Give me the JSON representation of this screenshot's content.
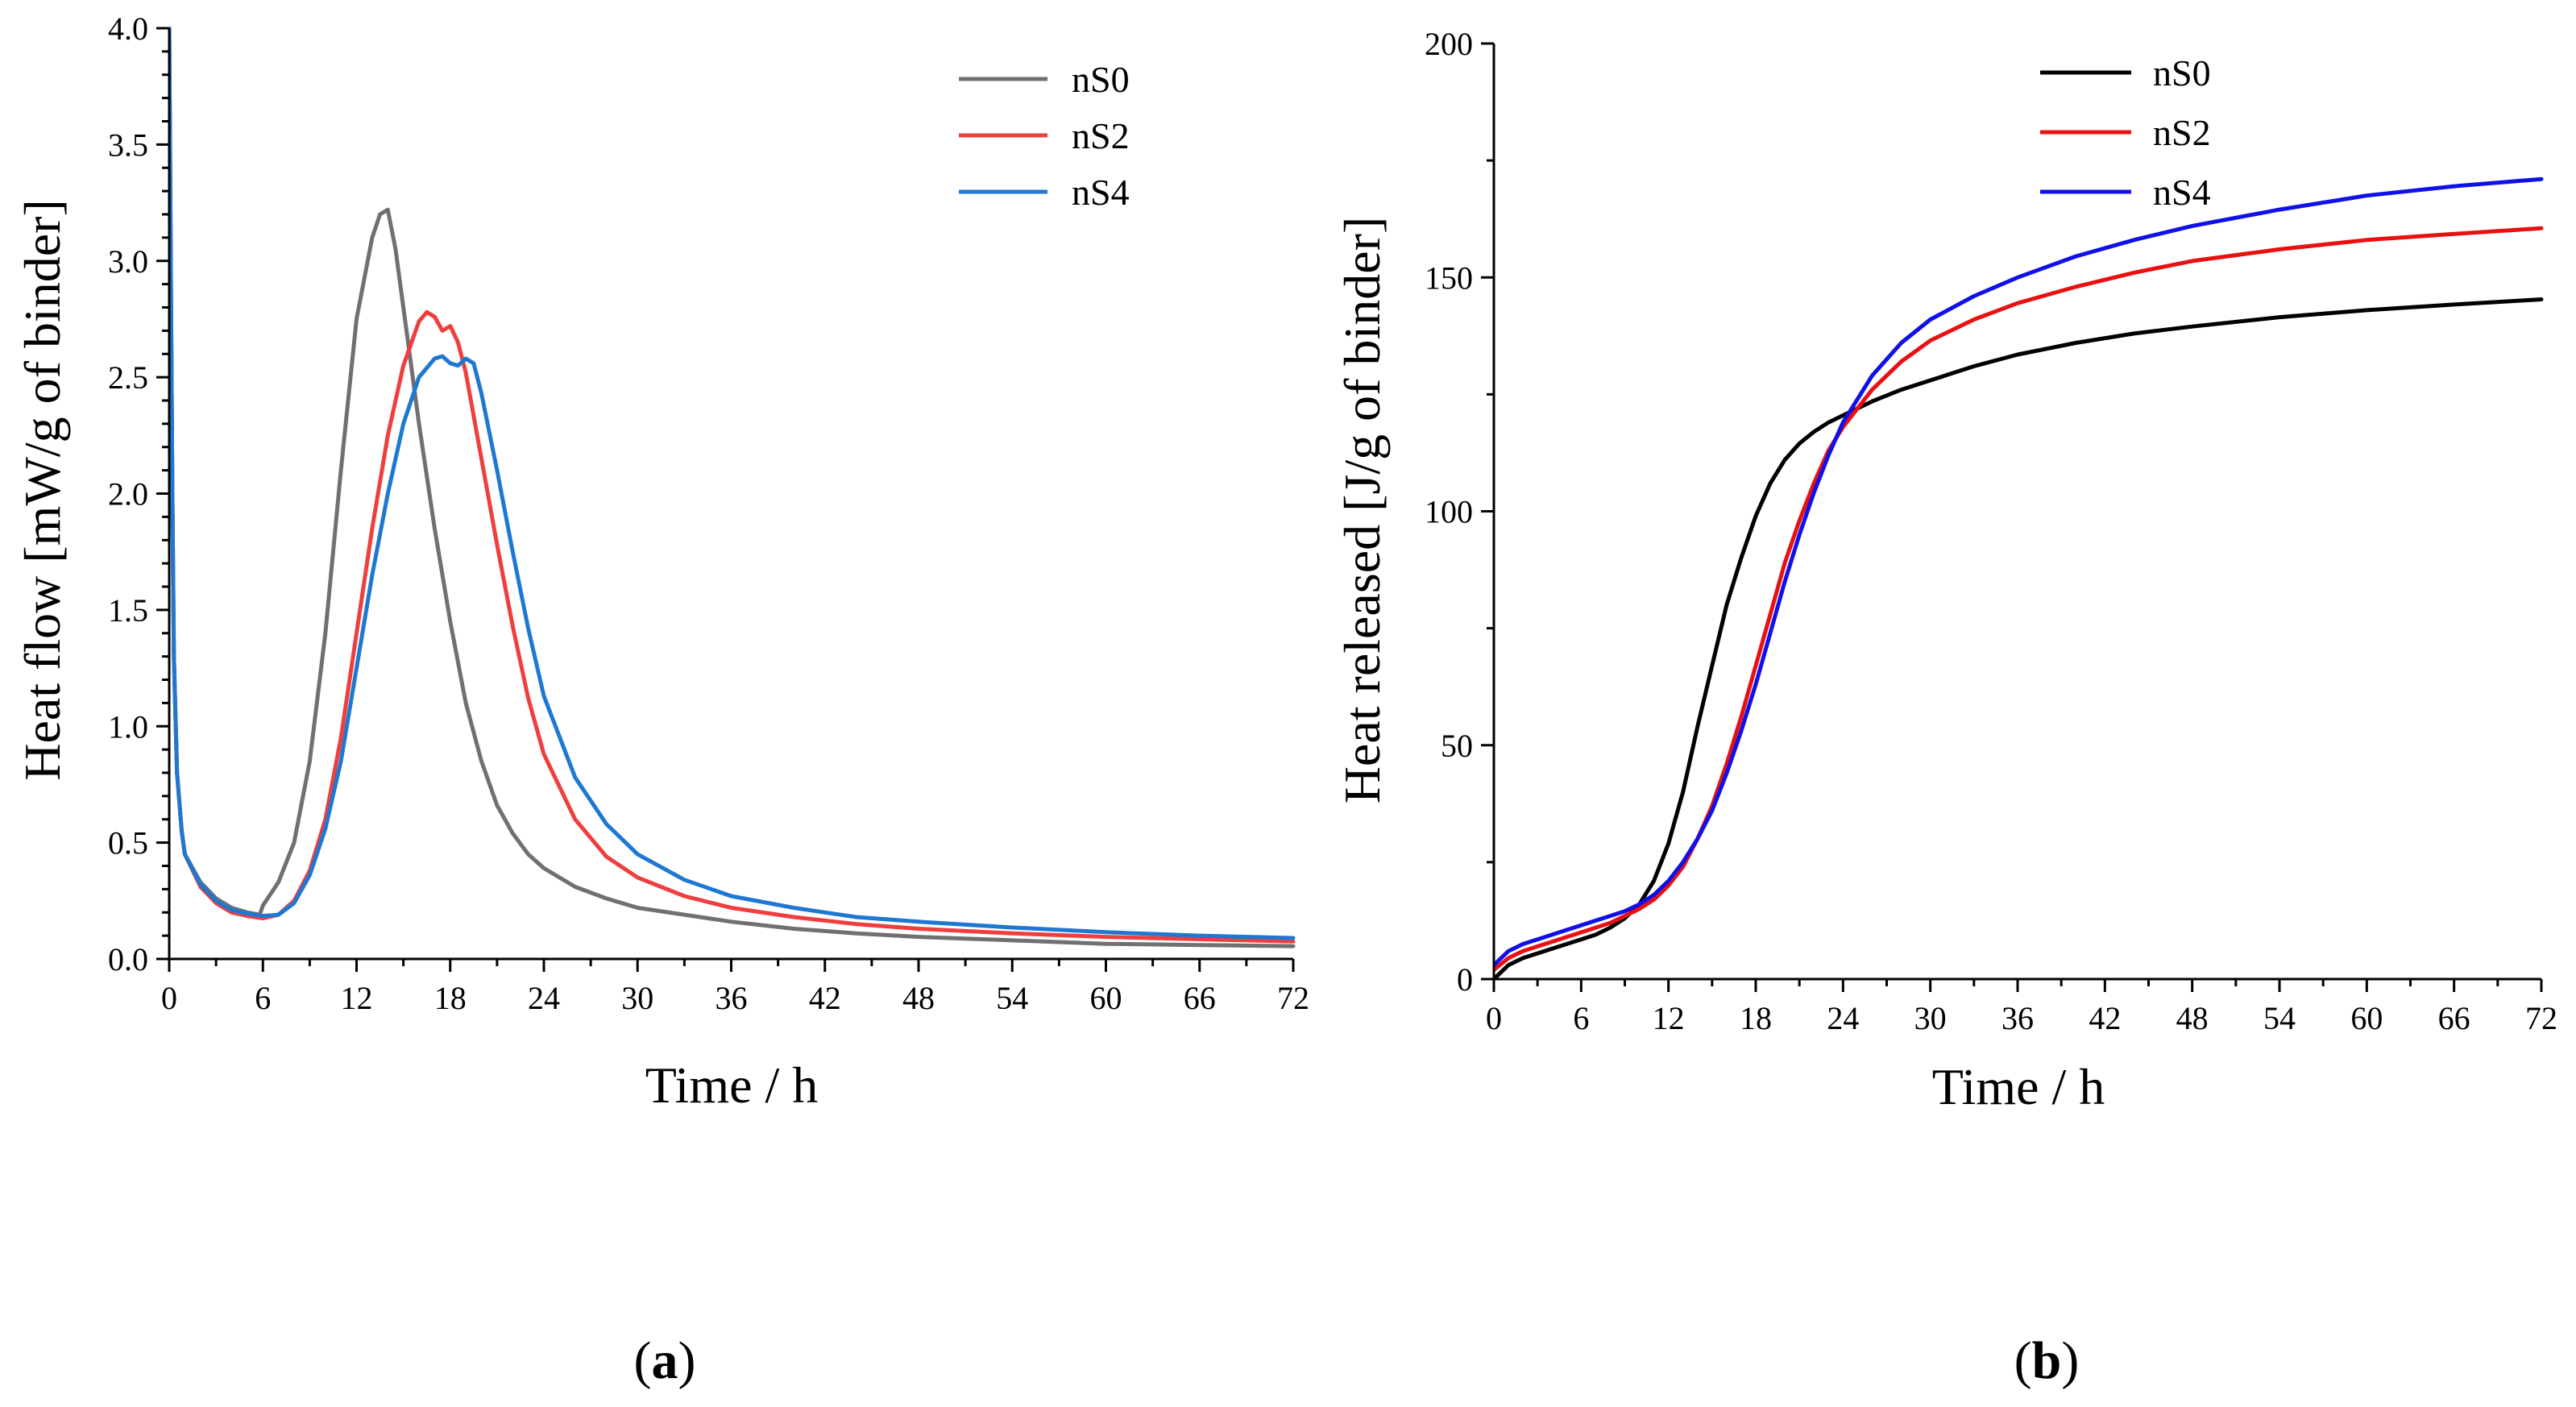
{
  "chart_data": [
    {
      "type": "line",
      "panel_label": "a",
      "title": "",
      "xlabel": "Time / h",
      "ylabel": "Heat flow [mW/g of binder]",
      "xlim": [
        0,
        72
      ],
      "ylim": [
        0,
        4.0
      ],
      "xticks": [
        "0",
        "6",
        "12",
        "18",
        "24",
        "30",
        "36",
        "42",
        "48",
        "54",
        "60",
        "66",
        "72"
      ],
      "yticks": [
        "0.0",
        "0.5",
        "1.0",
        "1.5",
        "2.0",
        "2.5",
        "3.0",
        "3.5",
        "4.0"
      ],
      "legend_position": "top-right",
      "series": [
        {
          "name": "nS0",
          "color": "#707070",
          "x": [
            0,
            0.1,
            0.2,
            0.3,
            0.5,
            0.8,
            1.0,
            2,
            3,
            4,
            5,
            5.8,
            6.0,
            6.5,
            7,
            8,
            9,
            10,
            11,
            12,
            13,
            13.5,
            14,
            14.5,
            15,
            16,
            17,
            18,
            19,
            20,
            21,
            22,
            23,
            24,
            26,
            28,
            30,
            33,
            36,
            40,
            44,
            48,
            54,
            60,
            66,
            72
          ],
          "y": [
            4.0,
            3.0,
            2.0,
            1.3,
            0.8,
            0.55,
            0.45,
            0.33,
            0.26,
            0.22,
            0.2,
            0.19,
            0.23,
            0.28,
            0.33,
            0.5,
            0.85,
            1.4,
            2.1,
            2.75,
            3.1,
            3.2,
            3.22,
            3.05,
            2.8,
            2.3,
            1.85,
            1.45,
            1.1,
            0.85,
            0.66,
            0.54,
            0.45,
            0.39,
            0.31,
            0.26,
            0.22,
            0.19,
            0.16,
            0.13,
            0.11,
            0.095,
            0.08,
            0.065,
            0.06,
            0.055
          ]
        },
        {
          "name": "nS2",
          "color": "#EF3E3E",
          "x": [
            0,
            0.1,
            0.2,
            0.3,
            0.5,
            0.8,
            1.0,
            2,
            3,
            4,
            5,
            6,
            7,
            8,
            9,
            10,
            11,
            12,
            13,
            14,
            15,
            16,
            16.5,
            17,
            17.5,
            18,
            18.5,
            19,
            20,
            21,
            22,
            23,
            24,
            26,
            28,
            30,
            33,
            36,
            40,
            44,
            48,
            54,
            60,
            66,
            72
          ],
          "y": [
            4.0,
            3.0,
            2.0,
            1.3,
            0.8,
            0.55,
            0.45,
            0.31,
            0.24,
            0.2,
            0.185,
            0.175,
            0.19,
            0.25,
            0.38,
            0.6,
            0.95,
            1.4,
            1.85,
            2.25,
            2.55,
            2.74,
            2.78,
            2.76,
            2.7,
            2.72,
            2.65,
            2.52,
            2.15,
            1.78,
            1.43,
            1.12,
            0.88,
            0.6,
            0.44,
            0.35,
            0.27,
            0.22,
            0.18,
            0.15,
            0.13,
            0.11,
            0.095,
            0.085,
            0.075
          ]
        },
        {
          "name": "nS4",
          "color": "#1E78D2",
          "x": [
            0,
            0.1,
            0.2,
            0.3,
            0.5,
            0.8,
            1.0,
            2,
            3,
            4,
            5,
            6,
            7,
            8,
            9,
            10,
            11,
            12,
            13,
            14,
            15,
            16,
            17,
            17.5,
            18,
            18.5,
            19,
            19.5,
            20,
            21,
            22,
            23,
            24,
            26,
            28,
            30,
            33,
            36,
            40,
            44,
            48,
            54,
            60,
            66,
            72
          ],
          "y": [
            4.0,
            3.0,
            2.0,
            1.3,
            0.8,
            0.55,
            0.45,
            0.32,
            0.25,
            0.21,
            0.195,
            0.185,
            0.19,
            0.24,
            0.36,
            0.56,
            0.85,
            1.25,
            1.65,
            2.0,
            2.3,
            2.5,
            2.58,
            2.59,
            2.56,
            2.55,
            2.58,
            2.56,
            2.43,
            2.1,
            1.75,
            1.42,
            1.13,
            0.78,
            0.58,
            0.45,
            0.34,
            0.27,
            0.22,
            0.18,
            0.16,
            0.135,
            0.115,
            0.1,
            0.09
          ]
        }
      ]
    },
    {
      "type": "line",
      "panel_label": "b",
      "title": "",
      "xlabel": "Time / h",
      "ylabel": "Heat released [J/g of binder]",
      "xlim": [
        0,
        72
      ],
      "ylim": [
        0,
        200
      ],
      "xticks": [
        "0",
        "6",
        "12",
        "18",
        "24",
        "30",
        "36",
        "42",
        "48",
        "54",
        "60",
        "66",
        "72"
      ],
      "yticks": [
        "0",
        "50",
        "100",
        "150",
        "200"
      ],
      "legend_position": "top-right",
      "series": [
        {
          "name": "nS0",
          "color": "#000000",
          "x": [
            0,
            1,
            2,
            3,
            4,
            5,
            6,
            7,
            8,
            9,
            10,
            11,
            12,
            13,
            14,
            15,
            16,
            17,
            18,
            19,
            20,
            21,
            22,
            23,
            24,
            26,
            28,
            30,
            33,
            36,
            40,
            44,
            48,
            54,
            60,
            66,
            72
          ],
          "y": [
            0,
            3,
            4.5,
            5.5,
            6.5,
            7.5,
            8.5,
            9.5,
            11,
            13,
            16,
            21,
            29,
            40,
            54,
            67,
            80,
            90,
            99,
            106,
            111,
            114.5,
            117,
            119,
            120.5,
            123.5,
            126,
            128,
            131,
            133.5,
            136,
            138,
            139.5,
            141.5,
            143,
            144.2,
            145.3
          ]
        },
        {
          "name": "nS2",
          "color": "#E81010",
          "x": [
            0,
            1,
            2,
            3,
            4,
            5,
            6,
            7,
            8,
            9,
            10,
            11,
            12,
            13,
            14,
            15,
            16,
            17,
            18,
            19,
            20,
            21,
            22,
            23,
            24,
            26,
            28,
            30,
            33,
            36,
            40,
            44,
            48,
            54,
            60,
            66,
            72
          ],
          "y": [
            2,
            4.5,
            6,
            7,
            8,
            9,
            10,
            11,
            12,
            13.5,
            15,
            17,
            20,
            24,
            30,
            37,
            46,
            56,
            67,
            78,
            89,
            98,
            106,
            113,
            118,
            126,
            132,
            136.5,
            141,
            144.5,
            148,
            151,
            153.5,
            156,
            158,
            159.3,
            160.5
          ]
        },
        {
          "name": "nS4",
          "color": "#1010E8",
          "x": [
            0,
            1,
            2,
            3,
            4,
            5,
            6,
            7,
            8,
            9,
            10,
            11,
            12,
            13,
            14,
            15,
            16,
            17,
            18,
            19,
            20,
            21,
            22,
            23,
            24,
            26,
            28,
            30,
            33,
            36,
            40,
            44,
            48,
            54,
            60,
            66,
            72
          ],
          "y": [
            3,
            6,
            7.5,
            8.5,
            9.5,
            10.5,
            11.5,
            12.5,
            13.5,
            14.5,
            16,
            18,
            21,
            25,
            30,
            36,
            44,
            53,
            63,
            74,
            85,
            95,
            104,
            112,
            119,
            129,
            136,
            141,
            146,
            150,
            154.5,
            158,
            161,
            164.5,
            167.5,
            169.5,
            171
          ]
        }
      ]
    }
  ]
}
